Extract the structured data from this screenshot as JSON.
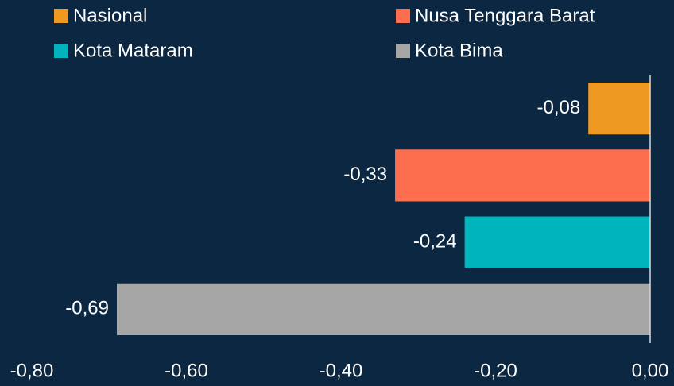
{
  "chart_data": {
    "type": "bar",
    "orientation": "horizontal",
    "series": [
      {
        "name": "Nasional",
        "color": "#ee9a22",
        "values": [
          -0.08
        ],
        "value_labels": [
          "-0,08"
        ]
      },
      {
        "name": "Nusa Tenggara Barat",
        "color": "#fc6e4e",
        "values": [
          -0.33
        ],
        "value_labels": [
          "-0,33"
        ]
      },
      {
        "name": "Kota Mataram",
        "color": "#00b4bd",
        "values": [
          -0.24
        ],
        "value_labels": [
          "-0,24"
        ]
      },
      {
        "name": "Kota Bima",
        "color": "#a6a6a6",
        "values": [
          -0.69
        ],
        "value_labels": [
          "-0,69"
        ]
      }
    ],
    "xlim": [
      -0.8,
      0
    ],
    "xticks": [
      {
        "value": -0.8,
        "label": "-0,80"
      },
      {
        "value": -0.6,
        "label": "-0,60"
      },
      {
        "value": -0.4,
        "label": "-0,40"
      },
      {
        "value": -0.2,
        "label": "-0,20"
      },
      {
        "value": 0,
        "label": "0,00"
      }
    ],
    "legend": "top"
  }
}
